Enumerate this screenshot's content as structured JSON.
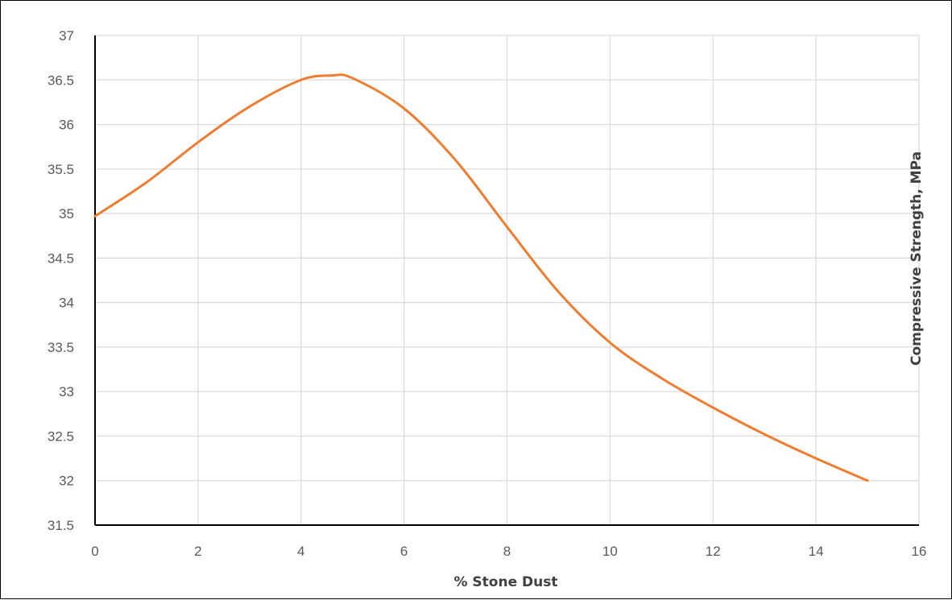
{
  "chart_data": {
    "type": "line",
    "xlabel": "% Stone Dust",
    "ylabel": "Compressive Strength, MPa",
    "xlim": [
      0,
      16
    ],
    "ylim": [
      31.5,
      37
    ],
    "xticks": [
      0,
      2,
      4,
      6,
      8,
      10,
      12,
      14,
      16
    ],
    "yticks": [
      31.5,
      32,
      32.5,
      33,
      33.5,
      34,
      34.5,
      35,
      35.5,
      36,
      36.5,
      37
    ],
    "xtick_labels": [
      "0",
      "2",
      "4",
      "6",
      "8",
      "10",
      "12",
      "14",
      "16"
    ],
    "ytick_labels": [
      "31.5",
      "32",
      "32.5",
      "33",
      "33.5",
      "34",
      "34.5",
      "35",
      "35.5",
      "36",
      "36.5",
      "37"
    ],
    "grid": true,
    "line_color": "#ED7D31",
    "series": [
      {
        "x": [
          0,
          1,
          2,
          3,
          4,
          4.6,
          5,
          6,
          7,
          8,
          9,
          10,
          11,
          12,
          13,
          14,
          15
        ],
        "y": [
          34.97,
          35.35,
          35.8,
          36.2,
          36.5,
          36.55,
          36.52,
          36.18,
          35.6,
          34.85,
          34.12,
          33.55,
          33.15,
          32.82,
          32.52,
          32.25,
          32.0
        ]
      }
    ]
  }
}
